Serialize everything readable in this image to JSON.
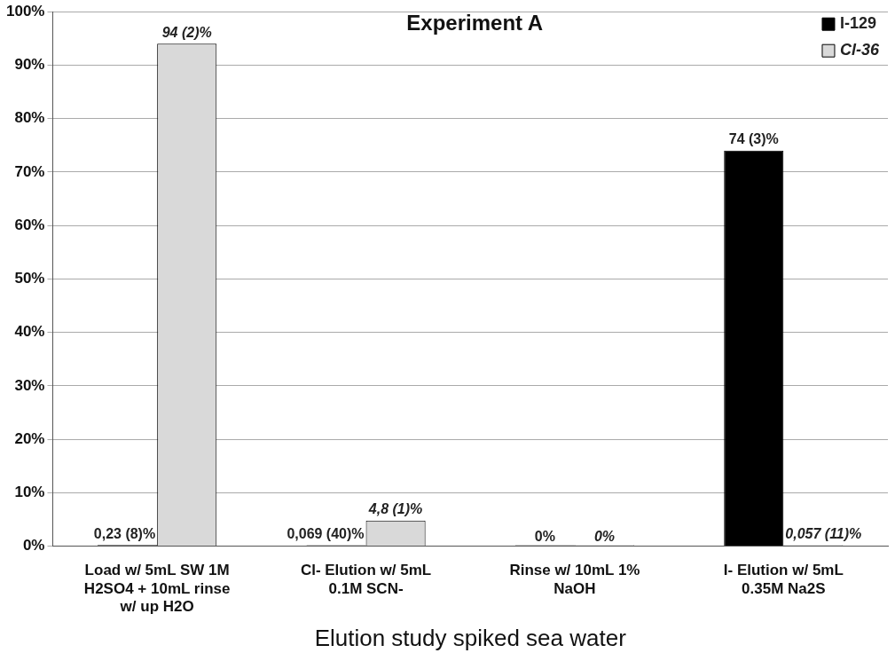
{
  "chart_data": {
    "type": "bar",
    "title": "Experiment A",
    "xlabel": "Elution study spiked sea water",
    "categories": [
      "Load w/ 5mL SW 1M H2SO4 + 10mL rinse w/ up H2O",
      "Cl- Elution w/ 5mL 0.1M SCN-",
      "Rinse w/ 10mL 1% NaOH",
      "I- Elution w/ 5mL 0.35M Na2S"
    ],
    "series": [
      {
        "name": "I-129",
        "color": "#000000",
        "values": [
          0.23,
          0.069,
          0,
          74
        ],
        "value_labels": [
          "0,23 (8)%",
          "0,069 (40)%",
          "0%",
          "74 (3)%"
        ]
      },
      {
        "name": "Cl-36",
        "color": "#d9d9d9",
        "values": [
          94,
          4.8,
          0,
          0.057
        ],
        "value_labels": [
          "94 (2)%",
          "4,8 (1)%",
          "0%",
          "0,057 (11)%"
        ]
      }
    ],
    "ylim": [
      0,
      100
    ],
    "yticks": [
      {
        "value": 0,
        "label": "0%"
      },
      {
        "value": 10,
        "label": "10%"
      },
      {
        "value": 20,
        "label": "20%"
      },
      {
        "value": 30,
        "label": "30%"
      },
      {
        "value": 40,
        "label": "40%"
      },
      {
        "value": 50,
        "label": "50%"
      },
      {
        "value": 60,
        "label": "60%"
      },
      {
        "value": 70,
        "label": "70%"
      },
      {
        "value": 80,
        "label": "80%"
      },
      {
        "value": 90,
        "label": "90%"
      },
      {
        "value": 100,
        "label": "100%"
      }
    ],
    "grid": "y",
    "legend": "top right"
  }
}
